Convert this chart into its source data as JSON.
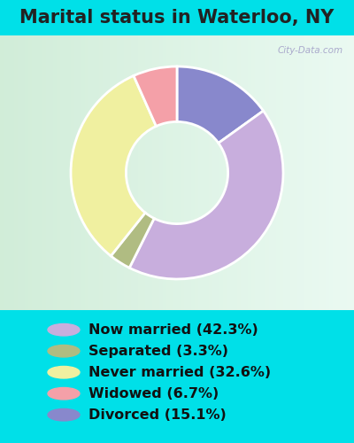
{
  "title": "Marital status in Waterloo, NY",
  "slices": [
    42.3,
    3.3,
    32.6,
    6.7,
    15.1
  ],
  "labels": [
    "Now married (42.3%)",
    "Separated (3.3%)",
    "Never married (32.6%)",
    "Widowed (6.7%)",
    "Divorced (15.1%)"
  ],
  "colors": [
    "#c8aedd",
    "#b0bc82",
    "#f0f0a0",
    "#f4a0a8",
    "#8888cc"
  ],
  "bg_cyan": "#00e0e8",
  "chart_bg_tl": "#d0ede0",
  "chart_bg_br": "#e8f5f0",
  "title_fontsize": 15,
  "legend_fontsize": 11.5,
  "watermark": "City-Data.com",
  "plot_order": [
    4,
    0,
    1,
    2,
    3
  ],
  "startangle": 90
}
